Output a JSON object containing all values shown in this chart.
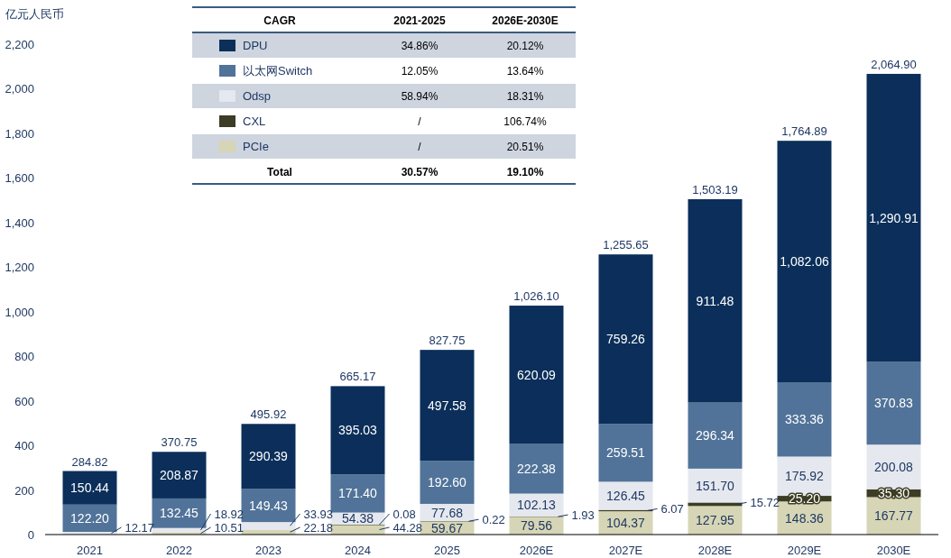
{
  "chart_data": {
    "type": "bar",
    "stacked": true,
    "ylabel": "亿元人民币",
    "ylim": [
      0,
      2200
    ],
    "yticks": [
      0,
      {
        "value": 200,
        "label": "200"
      },
      {
        "value": 400,
        "label": "400"
      },
      {
        "value": 600,
        "label": "600"
      },
      {
        "value": 800,
        "label": "800"
      },
      {
        "value": 1000,
        "label": "1,000"
      },
      {
        "value": 1200,
        "label": "1,200"
      },
      {
        "value": 1400,
        "label": "1,400"
      },
      {
        "value": 1600,
        "label": "1,600"
      },
      {
        "value": 1800,
        "label": "1,800"
      },
      {
        "value": 2000,
        "label": "2,000"
      },
      {
        "value": 2200,
        "label": "2,200"
      }
    ],
    "categories": [
      "2021",
      "2022",
      "2023",
      "2024",
      "2025",
      "2026E",
      "2027E",
      "2028E",
      "2029E",
      "2030E"
    ],
    "legend": "top",
    "series": [
      {
        "name": "PCIe",
        "color": "#d6d5b5",
        "values": [
          null,
          10.51,
          22.18,
          44.28,
          59.67,
          79.56,
          104.37,
          127.95,
          148.36,
          167.77
        ],
        "value_labels": [
          null,
          "10.51",
          "22.18",
          "44.28",
          "59.67",
          "79.56",
          "104.37",
          "127.95",
          "148.36",
          "167.77"
        ]
      },
      {
        "name": "CXL",
        "color": "#3d3c24",
        "values": [
          null,
          null,
          null,
          0.08,
          0.22,
          1.93,
          6.07,
          15.72,
          25.2,
          35.3
        ],
        "value_labels": [
          null,
          null,
          null,
          "0.08",
          "0.22",
          "1.93",
          "6.07",
          "15.72",
          "25.20",
          "35.30"
        ]
      },
      {
        "name": "Odsp",
        "color": "#e5e8ee",
        "values": [
          12.17,
          18.92,
          33.93,
          54.38,
          77.68,
          102.13,
          126.45,
          151.7,
          175.92,
          200.08
        ],
        "value_labels": [
          "12.17",
          "18.92",
          "33.93",
          "54.38",
          "77.68",
          "102.13",
          "126.45",
          "151.70",
          "175.92",
          "200.08"
        ]
      },
      {
        "name": "以太网Switch",
        "color": "#517399",
        "values": [
          122.2,
          132.45,
          149.43,
          171.4,
          192.6,
          222.38,
          259.51,
          296.34,
          333.36,
          370.83
        ],
        "value_labels": [
          "122.20",
          "132.45",
          "149.43",
          "171.40",
          "192.60",
          "222.38",
          "259.51",
          "296.34",
          "333.36",
          "370.83"
        ]
      },
      {
        "name": "DPU",
        "color": "#0b2f5a",
        "values": [
          150.44,
          208.87,
          290.39,
          395.03,
          497.58,
          620.09,
          759.26,
          911.48,
          1082.06,
          1290.91
        ],
        "value_labels": [
          "150.44",
          "208.87",
          "290.39",
          "395.03",
          "497.58",
          "620.09",
          "759.26",
          "911.48",
          "1,082.06",
          "1,290.91"
        ]
      }
    ],
    "totals": [
      "284.82",
      "370.75",
      "495.92",
      "665.17",
      "827.75",
      "1,026.10",
      "1,255.65",
      "1,503.19",
      "1,764.89",
      "2,064.90"
    ],
    "annotations": [
      "CAGR",
      "2021-2025",
      "2026E-2030E",
      "34.86%",
      "20.12%",
      "12.05%",
      "13.64%",
      "58.94%",
      "18.31%",
      "/",
      "106.74%",
      "/",
      "20.51%",
      "Total",
      "30.57%",
      "19.10%"
    ]
  }
}
